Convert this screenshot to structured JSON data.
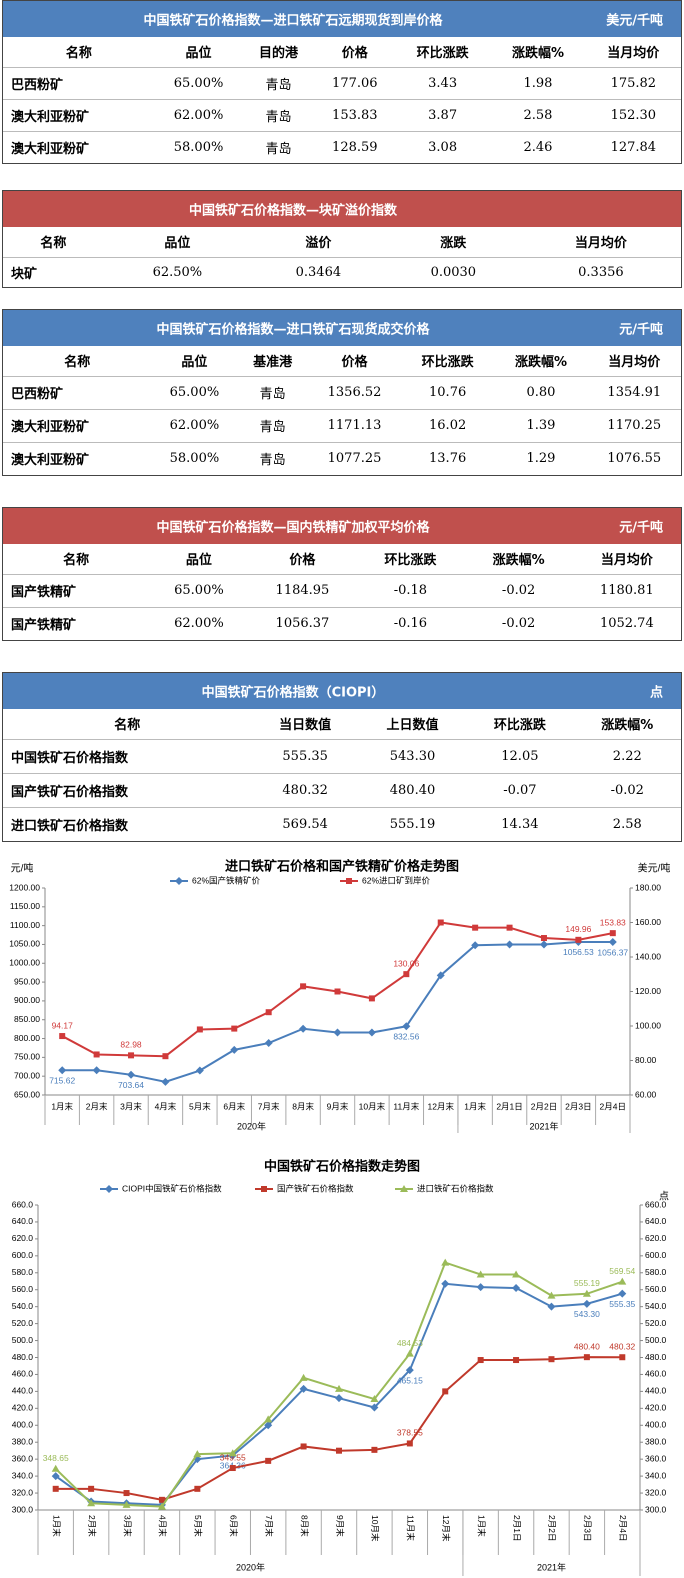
{
  "tables": [
    {
      "title": "中国铁矿石价格指数—进口铁矿石远期现货到岸价格",
      "unit": "美元/千吨",
      "color": "#4f81bd",
      "columns": [
        "名称",
        "品位",
        "目的港",
        "价格",
        "环比涨跌",
        "涨跌幅%",
        "当月均价"
      ],
      "rows": [
        [
          "巴西粉矿",
          "65.00%",
          "青岛",
          "177.06",
          "3.43",
          "1.98",
          "175.82"
        ],
        [
          "澳大利亚粉矿",
          "62.00%",
          "青岛",
          "153.83",
          "3.87",
          "2.58",
          "152.30"
        ],
        [
          "澳大利亚粉矿",
          "58.00%",
          "青岛",
          "128.59",
          "3.08",
          "2.46",
          "127.84"
        ]
      ]
    },
    {
      "title": "中国铁矿石价格指数—块矿溢价指数",
      "color": "#c0504d",
      "columns": [
        "名称",
        "品位",
        "溢价",
        "涨跌",
        "当月均价"
      ],
      "rows": [
        [
          "块矿",
          "62.50%",
          "0.3464",
          "0.0030",
          "0.3356"
        ]
      ]
    },
    {
      "title": "中国铁矿石价格指数—进口铁矿石现货成交价格",
      "unit": "元/千吨",
      "color": "#4f81bd",
      "columns": [
        "名称",
        "品位",
        "基准港",
        "价格",
        "环比涨跌",
        "涨跌幅%",
        "当月均价"
      ],
      "rows": [
        [
          "巴西粉矿",
          "65.00%",
          "青岛",
          "1356.52",
          "10.76",
          "0.80",
          "1354.91"
        ],
        [
          "澳大利亚粉矿",
          "62.00%",
          "青岛",
          "1171.13",
          "16.02",
          "1.39",
          "1170.25"
        ],
        [
          "澳大利亚粉矿",
          "58.00%",
          "青岛",
          "1077.25",
          "13.76",
          "1.29",
          "1076.55"
        ]
      ]
    },
    {
      "title": "中国铁矿石价格指数—国内铁精矿加权平均价格",
      "unit": "元/千吨",
      "color": "#c0504d",
      "columns": [
        "名称",
        "品位",
        "价格",
        "环比涨跌",
        "涨跌幅%",
        "当月均价"
      ],
      "rows": [
        [
          "国产铁精矿",
          "65.00%",
          "1184.95",
          "-0.18",
          "-0.02",
          "1180.81"
        ],
        [
          "国产铁精矿",
          "62.00%",
          "1056.37",
          "-0.16",
          "-0.02",
          "1052.74"
        ]
      ]
    },
    {
      "title": "中国铁矿石价格指数（CIOPI）",
      "unit": "点",
      "color": "#4f81bd",
      "columns": [
        "名称",
        "当日数值",
        "上日数值",
        "环比涨跌",
        "涨跌幅%"
      ],
      "rows": [
        [
          "中国铁矿石价格指数",
          "555.35",
          "543.30",
          "12.05",
          "2.22"
        ],
        [
          "国产铁矿石价格指数",
          "480.32",
          "480.40",
          "-0.07",
          "-0.02"
        ],
        [
          "进口铁矿石价格指数",
          "569.54",
          "555.19",
          "14.34",
          "2.58"
        ]
      ]
    }
  ],
  "chart_data": [
    {
      "type": "line",
      "title": "进口铁矿石价格和国产铁精矿价格走势图",
      "y_label": "元/吨",
      "y2_label": "美元/吨",
      "categories": [
        "1月末",
        "2月末",
        "3月末",
        "4月末",
        "5月末",
        "6月末",
        "7月末",
        "8月末",
        "9月末",
        "10月末",
        "11月末",
        "12月末",
        "1月末",
        "2月1日",
        "2月2日",
        "2月3日",
        "2月4日"
      ],
      "x_groups": [
        {
          "label": "2020年",
          "count": 12
        },
        {
          "label": "2021年",
          "count": 5
        }
      ],
      "ylim": [
        650,
        1200
      ],
      "yticks": [
        {
          "value": 650,
          "label": "650.00"
        },
        {
          "value": 700,
          "label": "700.00"
        },
        {
          "value": 750,
          "label": "750.00"
        },
        {
          "value": 800,
          "label": "800.00"
        },
        {
          "value": 850,
          "label": "850.00"
        },
        {
          "value": 900,
          "label": "900.00"
        },
        {
          "value": 950,
          "label": "950.00"
        },
        {
          "value": 1000,
          "label": "1000.00"
        },
        {
          "value": 1050,
          "label": "1050.00"
        },
        {
          "value": 1100,
          "label": "1100.00"
        },
        {
          "value": 1150,
          "label": "1150.00"
        },
        {
          "value": 1200,
          "label": "1200.00"
        }
      ],
      "y2lim": [
        60,
        180
      ],
      "y2ticks": [
        {
          "value": 60,
          "label": "60.00"
        },
        {
          "value": 80,
          "label": "80.00"
        },
        {
          "value": 100,
          "label": "100.00"
        },
        {
          "value": 120,
          "label": "120.00"
        },
        {
          "value": 140,
          "label": "140.00"
        },
        {
          "value": 160,
          "label": "160.00"
        },
        {
          "value": 180,
          "label": "180.00"
        }
      ],
      "grid": false,
      "series": [
        {
          "name": "62%国产铁精矿价",
          "color": "#4a7ebb",
          "marker": "diamond",
          "values": [
            715.62,
            715.62,
            703.64,
            685,
            715,
            770,
            788,
            826,
            816,
            816,
            832.56,
            968,
            1048,
            1050,
            1050,
            1056.53,
            1056.37
          ],
          "value_labels": [
            "715.62",
            null,
            "703.64",
            null,
            null,
            null,
            null,
            null,
            null,
            null,
            "832.56",
            null,
            null,
            null,
            null,
            "1056.53",
            "1056.37"
          ]
        },
        {
          "name": "62%进口矿到岸价",
          "color": "#d03a3a",
          "marker": "square",
          "axis": "y2",
          "values": [
            94.17,
            83.5,
            82.98,
            82.5,
            98,
            98.5,
            108,
            123,
            120,
            116,
            130.06,
            160,
            157,
            157,
            151,
            149.96,
            153.83
          ],
          "value_labels": [
            "94.17",
            null,
            "82.98",
            null,
            null,
            null,
            null,
            null,
            null,
            null,
            "130.06",
            null,
            null,
            null,
            null,
            "149.96",
            "153.83"
          ]
        }
      ]
    },
    {
      "type": "line",
      "title": "中国铁矿石价格指数走势图",
      "y2_label": "点",
      "categories": [
        "1月末",
        "2月末",
        "3月末",
        "4月末",
        "5月末",
        "6月末",
        "7月末",
        "8月末",
        "9月末",
        "10月末",
        "11月末",
        "12月末",
        "1月末",
        "2月1日",
        "2月2日",
        "2月3日",
        "2月4日"
      ],
      "x_groups": [
        {
          "label": "2020年",
          "count": 12
        },
        {
          "label": "2021年",
          "count": 5
        }
      ],
      "ylim": [
        300,
        660
      ],
      "yticks": [
        {
          "value": 300,
          "label": "300.0"
        },
        {
          "value": 320,
          "label": "320.0"
        },
        {
          "value": 340,
          "label": "340.0"
        },
        {
          "value": 360,
          "label": "360.0"
        },
        {
          "value": 380,
          "label": "380.0"
        },
        {
          "value": 400,
          "label": "400.0"
        },
        {
          "value": 420,
          "label": "420.0"
        },
        {
          "value": 440,
          "label": "440.0"
        },
        {
          "value": 460,
          "label": "460.0"
        },
        {
          "value": 480,
          "label": "480.0"
        },
        {
          "value": 500,
          "label": "500.0"
        },
        {
          "value": 520,
          "label": "520.0"
        },
        {
          "value": 540,
          "label": "540.0"
        },
        {
          "value": 560,
          "label": "560.0"
        },
        {
          "value": 580,
          "label": "580.0"
        },
        {
          "value": 600,
          "label": "600.0"
        },
        {
          "value": 620,
          "label": "620.0"
        },
        {
          "value": 640,
          "label": "640.0"
        },
        {
          "value": 660,
          "label": "660.0"
        }
      ],
      "y2lim": [
        300,
        660
      ],
      "y2ticks": [
        {
          "value": 300,
          "label": "300.0"
        },
        {
          "value": 320,
          "label": "320.0"
        },
        {
          "value": 340,
          "label": "340.0"
        },
        {
          "value": 360,
          "label": "360.0"
        },
        {
          "value": 380,
          "label": "380.0"
        },
        {
          "value": 400,
          "label": "400.0"
        },
        {
          "value": 420,
          "label": "420.0"
        },
        {
          "value": 440,
          "label": "440.0"
        },
        {
          "value": 460,
          "label": "460.0"
        },
        {
          "value": 480,
          "label": "480.0"
        },
        {
          "value": 500,
          "label": "500.0"
        },
        {
          "value": 520,
          "label": "520.0"
        },
        {
          "value": 540,
          "label": "540.0"
        },
        {
          "value": 560,
          "label": "560.0"
        },
        {
          "value": 580,
          "label": "580.0"
        },
        {
          "value": 600,
          "label": "600.0"
        },
        {
          "value": 620,
          "label": "620.0"
        },
        {
          "value": 640,
          "label": "640.0"
        },
        {
          "value": 660,
          "label": "660.0"
        }
      ],
      "grid": false,
      "series": [
        {
          "name": "CIOPI中国铁矿石价格指数",
          "color": "#4a7ebb",
          "marker": "diamond",
          "values": [
            340,
            310,
            308,
            306,
            360,
            364.36,
            400,
            443,
            432,
            421,
            465.15,
            567,
            563,
            562,
            540,
            543.3,
            555.35
          ],
          "value_labels": [
            null,
            null,
            null,
            null,
            null,
            "364.36",
            null,
            null,
            null,
            null,
            "465.15",
            null,
            null,
            null,
            null,
            "543.30",
            "555.35"
          ]
        },
        {
          "name": "国产铁矿石价格指数",
          "color": "#c0392b",
          "marker": "square",
          "values": [
            325,
            325,
            320,
            312,
            325,
            349.55,
            358,
            375,
            370,
            371,
            378.55,
            440,
            477,
            477,
            478,
            480.4,
            480.32
          ],
          "value_labels": [
            null,
            null,
            null,
            null,
            null,
            "349.55",
            null,
            null,
            null,
            null,
            "378.55",
            null,
            null,
            null,
            null,
            "480.40",
            "480.32"
          ]
        },
        {
          "name": "进口铁矿石价格指数",
          "color": "#9bbb59",
          "marker": "triangle",
          "values": [
            348.65,
            308,
            306,
            304,
            366,
            367,
            407,
            456,
            443,
            431,
            484.53,
            592,
            578,
            578,
            553,
            555.19,
            569.54
          ],
          "value_labels": [
            "348.65",
            null,
            null,
            null,
            null,
            null,
            null,
            null,
            null,
            null,
            "484.53",
            null,
            null,
            null,
            null,
            "555.19",
            "569.54"
          ]
        }
      ]
    }
  ]
}
